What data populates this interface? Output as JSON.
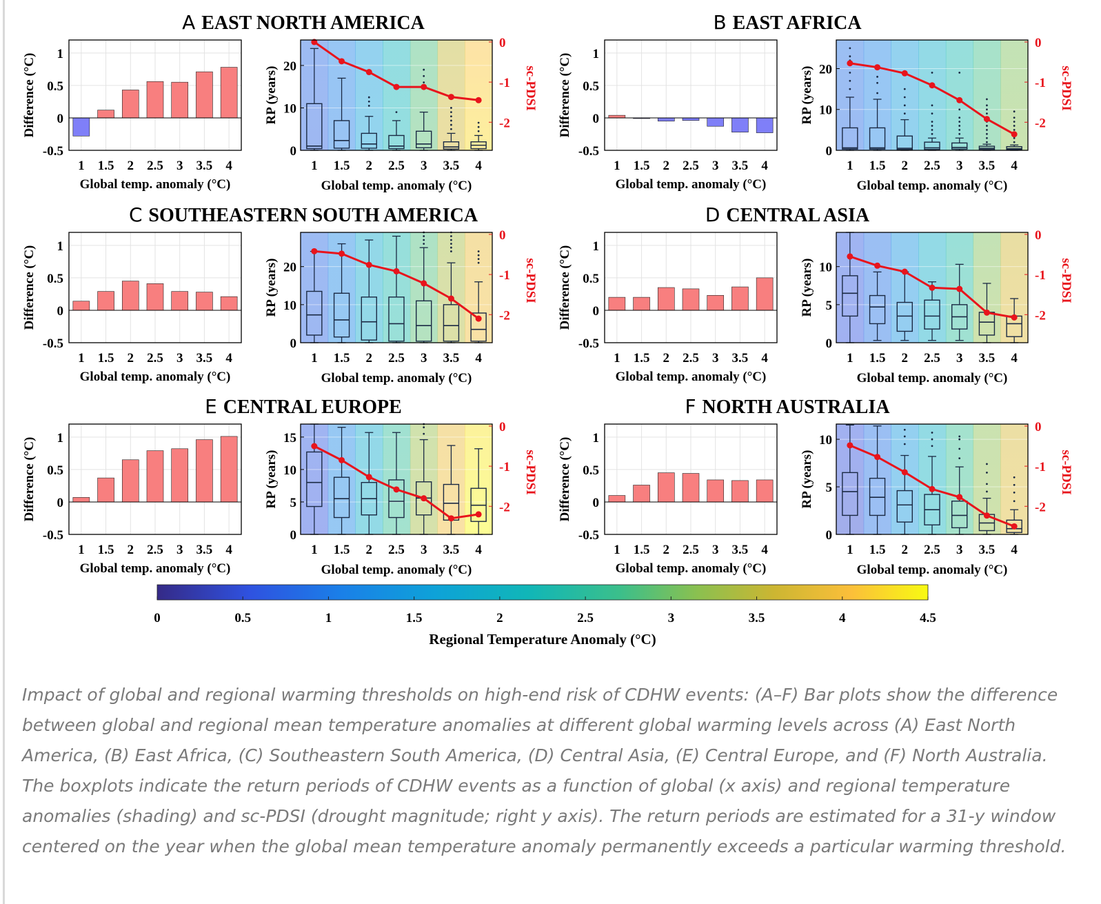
{
  "figure": {
    "x_ticks": [
      "1",
      "1.5",
      "2",
      "2.5",
      "3",
      "3.5",
      "4"
    ],
    "bar_y_ticks": [
      "1",
      "0.5",
      "0",
      "-0.5"
    ],
    "bar_ylabel": "Difference (°C)",
    "box_ylabel": "RP (years)",
    "right_ylabel": "sc-PDSI",
    "right_ticks": [
      "0",
      "-1",
      "-2"
    ],
    "xlabel": "Global temp. anomaly (°C)",
    "colorbar": {
      "ticks": [
        "0",
        "0.5",
        "1",
        "1.5",
        "2",
        "2.5",
        "3",
        "3.5",
        "4",
        "4.5"
      ],
      "label": "Regional Temperature Anomaly (°C)"
    },
    "colors": {
      "bar_positive": "#f87f7f",
      "bar_negative": "#7f7ff8",
      "pdsi_line": "#e8141c"
    }
  },
  "chart_data": [
    {
      "type": "bar+box",
      "panel": "A",
      "title": "EAST NORTH AMERICA",
      "x": [
        1,
        1.5,
        2,
        2.5,
        3,
        3.5,
        4
      ],
      "difference": [
        -0.28,
        0.12,
        0.43,
        0.56,
        0.55,
        0.71,
        0.78
      ],
      "rp_ylim": [
        0,
        26
      ],
      "rp_ticks": [
        0,
        10,
        20
      ],
      "rp_box": [
        {
          "lo": 0,
          "q1": 0.4,
          "med": 1,
          "q3": 11,
          "hi": 24,
          "out": []
        },
        {
          "lo": 0,
          "q1": 0.5,
          "med": 2.3,
          "q3": 7,
          "hi": 17,
          "out": []
        },
        {
          "lo": 0,
          "q1": 0.5,
          "med": 1.5,
          "q3": 4,
          "hi": 8,
          "out": [
            10.5,
            11.5,
            12.5
          ]
        },
        {
          "lo": 0,
          "q1": 0.4,
          "med": 1,
          "q3": 3.5,
          "hi": 7,
          "out": [
            9
          ]
        },
        {
          "lo": 0,
          "q1": 0.6,
          "med": 1.5,
          "q3": 4.5,
          "hi": 9,
          "out": [
            15,
            16,
            17.5,
            19
          ]
        },
        {
          "lo": 0,
          "q1": 0.3,
          "med": 0.8,
          "q3": 2,
          "hi": 4,
          "out": [
            5,
            6,
            7,
            8,
            9,
            10
          ]
        },
        {
          "lo": 0,
          "q1": 0.4,
          "med": 1.2,
          "q3": 2,
          "hi": 3.5,
          "out": [
            4.5,
            5.5,
            6.5
          ]
        }
      ],
      "sc_pdsi": [
        0,
        -0.48,
        -0.75,
        -1.12,
        -1.12,
        -1.37,
        -1.45
      ],
      "pdsi_ylim": [
        -2.7,
        0.05
      ]
    },
    {
      "type": "bar+box",
      "panel": "B",
      "title": "EAST AFRICA",
      "x": [
        1,
        1.5,
        2,
        2.5,
        3,
        3.5,
        4
      ],
      "difference": [
        0.04,
        -0.01,
        -0.05,
        -0.04,
        -0.13,
        -0.22,
        -0.23
      ],
      "rp_ylim": [
        0,
        27
      ],
      "rp_ticks": [
        0,
        10,
        20
      ],
      "rp_box": [
        {
          "lo": 0,
          "q1": 0.3,
          "med": 0.6,
          "q3": 5.5,
          "hi": 13,
          "out": [
            15,
            17,
            19,
            21,
            22,
            23,
            25
          ]
        },
        {
          "lo": 0,
          "q1": 0.3,
          "med": 0.6,
          "q3": 5.5,
          "hi": 12.5,
          "out": [
            14,
            16.5,
            18
          ]
        },
        {
          "lo": 0,
          "q1": 0.2,
          "med": 0.5,
          "q3": 3.5,
          "hi": 7.5,
          "out": [
            9,
            11,
            13,
            15
          ]
        },
        {
          "lo": 0,
          "q1": 0.2,
          "med": 0.6,
          "q3": 2,
          "hi": 3,
          "out": [
            4,
            5,
            6,
            7,
            9,
            11,
            19
          ]
        },
        {
          "lo": 0,
          "q1": 0.3,
          "med": 0.7,
          "q3": 1.8,
          "hi": 3,
          "out": [
            4,
            5,
            6,
            7,
            8,
            10,
            12,
            19
          ]
        },
        {
          "lo": 0,
          "q1": 0.2,
          "med": 0.5,
          "q3": 1,
          "hi": 1.5,
          "out": [
            2,
            3,
            4,
            5,
            6,
            7,
            8,
            9,
            10,
            11,
            12.5
          ]
        },
        {
          "lo": 0,
          "q1": 0.2,
          "med": 0.4,
          "q3": 0.9,
          "hi": 1.3,
          "out": [
            2,
            3,
            4,
            5,
            6,
            7,
            8,
            9.5
          ]
        }
      ],
      "sc_pdsi": [
        -0.53,
        -0.63,
        -0.78,
        -1.08,
        -1.45,
        -1.92,
        -2.3
      ],
      "pdsi_ylim": [
        -2.7,
        0.05
      ]
    },
    {
      "type": "bar+box",
      "panel": "C",
      "title": "SOUTHEASTERN SOUTH AMERICA",
      "x": [
        1,
        1.5,
        2,
        2.5,
        3,
        3.5,
        4
      ],
      "difference": [
        0.14,
        0.29,
        0.45,
        0.41,
        0.29,
        0.28,
        0.21
      ],
      "rp_ylim": [
        0,
        29
      ],
      "rp_ticks": [
        0,
        10,
        20
      ],
      "rp_box": [
        {
          "lo": 0,
          "q1": 2,
          "med": 7.3,
          "q3": 13.5,
          "hi": 24,
          "out": []
        },
        {
          "lo": 0,
          "q1": 1.5,
          "med": 6,
          "q3": 13,
          "hi": 26,
          "out": []
        },
        {
          "lo": 0,
          "q1": 0.7,
          "med": 5.5,
          "q3": 12,
          "hi": 27,
          "out": []
        },
        {
          "lo": 0,
          "q1": 0.4,
          "med": 5,
          "q3": 12,
          "hi": 28,
          "out": []
        },
        {
          "lo": 0,
          "q1": 0.4,
          "med": 4.5,
          "q3": 11,
          "hi": 25,
          "out": [
            26,
            27,
            28,
            29
          ]
        },
        {
          "lo": 0,
          "q1": 0.4,
          "med": 4.5,
          "q3": 10,
          "hi": 21,
          "out": [
            24,
            25,
            26,
            27,
            28,
            29
          ]
        },
        {
          "lo": 0,
          "q1": 0.4,
          "med": 3.5,
          "q3": 7.8,
          "hi": 16,
          "out": [
            21,
            22,
            23,
            24
          ]
        }
      ],
      "sc_pdsi": [
        -0.42,
        -0.48,
        -0.76,
        -0.92,
        -1.22,
        -1.6,
        -2.1
      ],
      "pdsi_ylim": [
        -2.7,
        0.05
      ]
    },
    {
      "type": "bar+box",
      "panel": "D",
      "title": "CENTRAL ASIA",
      "x": [
        1,
        1.5,
        2,
        2.5,
        3,
        3.5,
        4
      ],
      "difference": [
        0.2,
        0.2,
        0.35,
        0.33,
        0.23,
        0.36,
        0.5
      ],
      "rp_ylim": [
        0,
        14.5
      ],
      "rp_ticks": [
        0,
        5,
        10
      ],
      "rp_box": [
        {
          "lo": 0,
          "q1": 3.5,
          "med": 6.5,
          "q3": 8.8,
          "hi": 14.5,
          "out": []
        },
        {
          "lo": 0.3,
          "q1": 2.5,
          "med": 4.7,
          "q3": 6.2,
          "hi": 9.3,
          "out": []
        },
        {
          "lo": 0.3,
          "q1": 1.5,
          "med": 3.5,
          "q3": 5.3,
          "hi": 9.3,
          "out": []
        },
        {
          "lo": 0.3,
          "q1": 1.8,
          "med": 3.5,
          "q3": 5.6,
          "hi": 8,
          "out": []
        },
        {
          "lo": 0.3,
          "q1": 1.8,
          "med": 3.4,
          "q3": 5,
          "hi": 10.3,
          "out": []
        },
        {
          "lo": 0,
          "q1": 1,
          "med": 2.7,
          "q3": 4,
          "hi": 7.8,
          "out": []
        },
        {
          "lo": 0,
          "q1": 0.8,
          "med": 2.5,
          "q3": 3.5,
          "hi": 5.8,
          "out": []
        }
      ],
      "sc_pdsi": [
        -0.55,
        -0.78,
        -0.93,
        -1.33,
        -1.36,
        -1.95,
        -2.07
      ],
      "pdsi_ylim": [
        -2.7,
        0.05
      ]
    },
    {
      "type": "bar+box",
      "panel": "E",
      "title": "CENTRAL EUROPE",
      "x": [
        1,
        1.5,
        2,
        2.5,
        3,
        3.5,
        4
      ],
      "difference": [
        0.07,
        0.37,
        0.65,
        0.79,
        0.82,
        0.96,
        1.01
      ],
      "rp_ylim": [
        0,
        17
      ],
      "rp_ticks": [
        0,
        5,
        10,
        15
      ],
      "rp_box": [
        {
          "lo": 0,
          "q1": 4.3,
          "med": 8,
          "q3": 12.7,
          "hi": 17,
          "out": []
        },
        {
          "lo": 0,
          "q1": 2.6,
          "med": 5.5,
          "q3": 8.8,
          "hi": 16.5,
          "out": []
        },
        {
          "lo": 0,
          "q1": 3,
          "med": 5.5,
          "q3": 8,
          "hi": 15.7,
          "out": []
        },
        {
          "lo": 0,
          "q1": 2.6,
          "med": 5.1,
          "q3": 8.4,
          "hi": 15.7,
          "out": []
        },
        {
          "lo": 0,
          "q1": 3,
          "med": 5.6,
          "q3": 8.1,
          "hi": 14.6,
          "out": [
            15.5,
            16.5,
            17
          ]
        },
        {
          "lo": 0,
          "q1": 2.2,
          "med": 4.8,
          "q3": 7.7,
          "hi": 13.7,
          "out": []
        },
        {
          "lo": 0,
          "q1": 2,
          "med": 4.5,
          "q3": 7.1,
          "hi": 13.2,
          "out": []
        }
      ],
      "sc_pdsi": [
        -0.5,
        -0.85,
        -1.27,
        -1.58,
        -1.8,
        -2.3,
        -2.2
      ],
      "pdsi_ylim": [
        -2.7,
        0.05
      ]
    },
    {
      "type": "bar+box",
      "panel": "F",
      "title": "NORTH AUSTRALIA",
      "x": [
        1,
        1.5,
        2,
        2.5,
        3,
        3.5,
        4
      ],
      "difference": [
        0.1,
        0.26,
        0.45,
        0.44,
        0.34,
        0.33,
        0.34
      ],
      "rp_ylim": [
        0,
        11.6
      ],
      "rp_ticks": [
        0,
        5,
        10
      ],
      "rp_box": [
        {
          "lo": 0,
          "q1": 2,
          "med": 4.5,
          "q3": 6.5,
          "hi": 11.5,
          "out": []
        },
        {
          "lo": 0,
          "q1": 2,
          "med": 3.9,
          "q3": 5.9,
          "hi": 11.4,
          "out": []
        },
        {
          "lo": 0,
          "q1": 1.3,
          "med": 3.1,
          "q3": 4.6,
          "hi": 8.3,
          "out": [
            9.5,
            10.3,
            11
          ]
        },
        {
          "lo": 0,
          "q1": 1,
          "med": 2.6,
          "q3": 4.2,
          "hi": 8.2,
          "out": [
            9.3,
            10,
            10.7
          ]
        },
        {
          "lo": 0,
          "q1": 0.7,
          "med": 2,
          "q3": 3.5,
          "hi": 7.1,
          "out": [
            8,
            9,
            10,
            10.3
          ]
        },
        {
          "lo": 0,
          "q1": 0.4,
          "med": 1.2,
          "q3": 2.1,
          "hi": 3.8,
          "out": [
            4.5,
            5.3,
            6.5,
            7.4
          ]
        },
        {
          "lo": 0,
          "q1": 0.2,
          "med": 0.6,
          "q3": 1.5,
          "hi": 2.6,
          "out": [
            3.5,
            4.4,
            5.2,
            6
          ]
        }
      ],
      "sc_pdsi": [
        -0.48,
        -0.77,
        -1.15,
        -1.57,
        -1.77,
        -2.23,
        -2.5
      ],
      "pdsi_ylim": [
        -2.7,
        0.05
      ]
    }
  ],
  "caption": "Impact of global and regional warming thresholds on high-end risk of CDHW events: (A–F) Bar plots show the difference between global and regional mean temperature anomalies at different global warming levels across (A) East North America, (B) East Africa, (C) Southeastern South America, (D) Central Asia, (E) Central Europe, and (F) North Australia. The boxplots indicate the return periods of CDHW events as a function of global (x axis) and regional temperature anomalies (shading) and sc-PDSI (drought magnitude; right y axis). The return periods are estimated for a 31-y window centered on the year when the global mean temperature anomaly permanently exceeds a particular warming threshold."
}
